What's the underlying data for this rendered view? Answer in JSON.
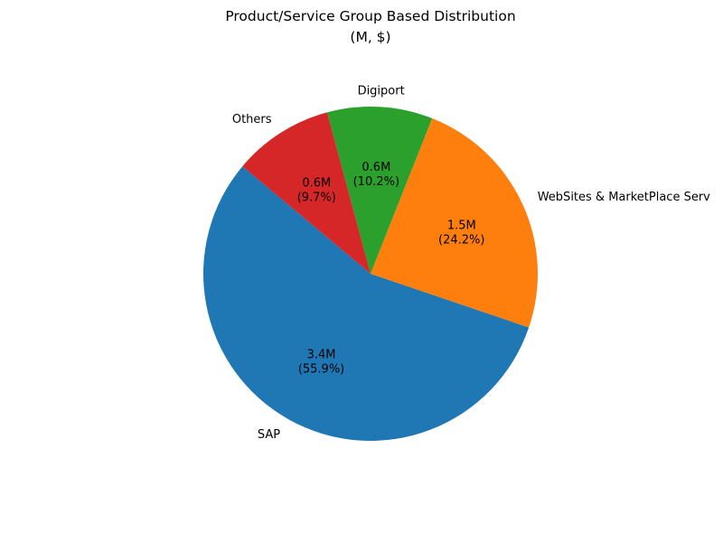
{
  "chart_data": {
    "type": "pie",
    "title_line1": "Product/Service Group Based Distribution",
    "title_line2": "(M, $)",
    "start_angle_deg": 140,
    "direction": "counterclockwise",
    "slices": [
      {
        "key": "sap",
        "label": "SAP",
        "value": 3.4,
        "percent": 55.9,
        "value_text": "3.4M",
        "percent_text": "(55.9%)",
        "color": "#1f77b4"
      },
      {
        "key": "websites",
        "label": "WebSites & MarketPlace Serv",
        "value": 1.5,
        "percent": 24.2,
        "value_text": "1.5M",
        "percent_text": "(24.2%)",
        "color": "#ff7f0e"
      },
      {
        "key": "digiport",
        "label": "Digiport",
        "value": 0.6,
        "percent": 10.2,
        "value_text": "0.6M",
        "percent_text": "(10.2%)",
        "color": "#2ca02c"
      },
      {
        "key": "others",
        "label": "Others",
        "value": 0.6,
        "percent": 9.7,
        "value_text": "0.6M",
        "percent_text": "(9.7%)",
        "color": "#d62728"
      }
    ]
  }
}
